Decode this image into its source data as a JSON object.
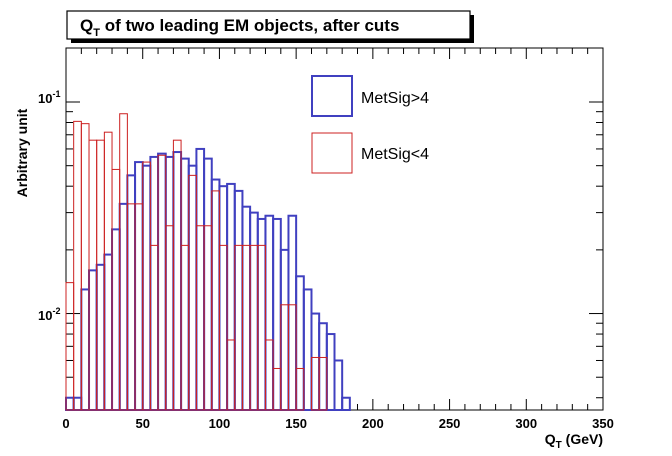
{
  "chart_data": {
    "type": "histogram",
    "title": "Q",
    "title_sub": "T",
    "title_rest": " of two leading EM objects, after cuts",
    "xlabel_main": "Q",
    "xlabel_sub": "T",
    "xlabel_rest": " (GeV)",
    "ylabel": "Arbitrary unit",
    "xlim": [
      0,
      350
    ],
    "ylim": [
      0.0035,
      0.18
    ],
    "yscale": "log",
    "bin_width": 5,
    "x_ticks": [
      0,
      50,
      100,
      150,
      200,
      250,
      300,
      350
    ],
    "x_tick_labels": [
      "0",
      "50",
      "100",
      "150",
      "200",
      "250",
      "300",
      "350"
    ],
    "y_ticks": [
      {
        "base": "10",
        "exp": "-1",
        "value": 0.1
      },
      {
        "base": "10",
        "exp": "-2",
        "value": 0.01
      }
    ],
    "series": [
      {
        "name": "MetSig>4",
        "legend": "MetSig>4",
        "color": "#4040c0",
        "values": [
          0.004,
          0.004,
          0.013,
          0.016,
          0.017,
          0.019,
          0.025,
          0.033,
          0.045,
          0.052,
          0.05,
          0.055,
          0.057,
          0.055,
          0.058,
          0.054,
          0.05,
          0.06,
          0.054,
          0.043,
          0.04,
          0.041,
          0.038,
          0.032,
          0.03,
          0.028,
          0.029,
          0.028,
          0.02,
          0.029,
          0.015,
          0.013,
          0.01,
          0.009,
          0.008,
          0.006,
          0.004,
          0.0035,
          0.0035,
          0.0035
        ]
      },
      {
        "name": "MetSig<4",
        "legend": "MetSig<4",
        "color": "#cc2020",
        "values": [
          0.014,
          0.081,
          0.079,
          0.066,
          0.066,
          0.072,
          0.048,
          0.088,
          0.033,
          0.033,
          0.052,
          0.021,
          0.056,
          0.026,
          0.066,
          0.021,
          0.045,
          0.026,
          0.026,
          0.038,
          0.021,
          0.0075,
          0.021,
          0.021,
          0.021,
          0.021,
          0.0075,
          0.0055,
          0.011,
          0.011,
          0.0055,
          0.0035,
          0.0062,
          0.0062,
          0.0035,
          0.0035,
          0.0035,
          0.0035,
          0.0035,
          0.0035,
          0.0035,
          0.0035,
          0.0035,
          0.0035,
          0.0035,
          0.0035,
          0.0035,
          0.0035,
          0.0035,
          0.0035,
          0.0035,
          0.0035,
          0.0035,
          0.0035,
          0.0035,
          0.0035,
          0.0035,
          0.0035,
          0.0035,
          0.0035,
          0.0035
        ]
      }
    ],
    "legend_position": "top-right"
  }
}
